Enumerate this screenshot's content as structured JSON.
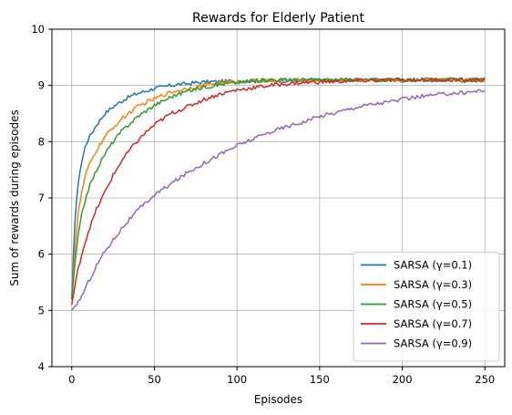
{
  "chart_data": {
    "type": "line",
    "title": "Rewards for Elderly Patient",
    "xlabel": "Episodes",
    "ylabel": "Sum of rewards during episodes",
    "xlim": [
      -12,
      262
    ],
    "ylim": [
      4,
      10
    ],
    "xticks": [
      0,
      50,
      100,
      150,
      200,
      250
    ],
    "yticks": [
      4,
      5,
      6,
      7,
      8,
      9,
      10
    ],
    "grid": true,
    "legend_position": "lower-right",
    "series": [
      {
        "name": "SARSA (γ=0.1)",
        "color": "#1f77b4",
        "x": [
          0,
          1,
          2,
          3,
          5,
          8,
          10,
          15,
          20,
          25,
          30,
          35,
          40,
          45,
          50,
          55,
          60,
          65,
          70,
          75,
          80,
          90,
          100,
          110,
          120,
          130,
          140,
          150,
          160,
          170,
          180,
          190,
          200,
          210,
          220,
          230,
          240,
          250
        ],
        "values": [
          5.2,
          6.0,
          6.6,
          7.0,
          7.5,
          7.9,
          8.05,
          8.3,
          8.5,
          8.62,
          8.72,
          8.8,
          8.86,
          8.9,
          8.95,
          8.97,
          9.0,
          9.02,
          9.03,
          9.05,
          9.06,
          9.07,
          9.08,
          9.08,
          9.09,
          9.09,
          9.09,
          9.09,
          9.09,
          9.1,
          9.09,
          9.1,
          9.09,
          9.1,
          9.09,
          9.1,
          9.08,
          9.1
        ]
      },
      {
        "name": "SARSA (γ=0.3)",
        "color": "#ff7f0e",
        "x": [
          0,
          2,
          4,
          6,
          8,
          10,
          15,
          20,
          25,
          30,
          35,
          40,
          45,
          50,
          55,
          60,
          70,
          80,
          90,
          100,
          110,
          120,
          130,
          140,
          150,
          160,
          170,
          180,
          190,
          200,
          210,
          220,
          230,
          240,
          250
        ],
        "values": [
          5.2,
          6.1,
          6.75,
          7.1,
          7.35,
          7.55,
          7.85,
          8.08,
          8.25,
          8.4,
          8.52,
          8.62,
          8.7,
          8.76,
          8.83,
          8.88,
          8.95,
          9.0,
          9.05,
          9.07,
          9.08,
          9.08,
          9.09,
          9.09,
          9.09,
          9.09,
          9.1,
          9.09,
          9.1,
          9.09,
          9.1,
          9.09,
          9.1,
          9.09,
          9.1
        ]
      },
      {
        "name": "SARSA (γ=0.5)",
        "color": "#2ca02c",
        "x": [
          0,
          2,
          4,
          6,
          8,
          10,
          15,
          20,
          25,
          30,
          35,
          40,
          45,
          50,
          55,
          60,
          70,
          80,
          90,
          100,
          110,
          120,
          130,
          140,
          150,
          160,
          170,
          180,
          190,
          200,
          210,
          220,
          230,
          240,
          250
        ],
        "values": [
          5.2,
          5.85,
          6.35,
          6.7,
          6.95,
          7.15,
          7.5,
          7.78,
          8.0,
          8.18,
          8.32,
          8.45,
          8.55,
          8.65,
          8.72,
          8.8,
          8.9,
          8.97,
          9.02,
          9.05,
          9.08,
          9.1,
          9.1,
          9.1,
          9.1,
          9.1,
          9.1,
          9.1,
          9.1,
          9.1,
          9.1,
          9.1,
          9.1,
          9.1,
          9.1
        ]
      },
      {
        "name": "SARSA (γ=0.7)",
        "color": "#d62728",
        "x": [
          0,
          2,
          4,
          6,
          8,
          10,
          15,
          20,
          25,
          30,
          35,
          40,
          45,
          50,
          55,
          60,
          70,
          80,
          90,
          100,
          110,
          120,
          130,
          140,
          150,
          160,
          170,
          180,
          190,
          200,
          210,
          220,
          230,
          240,
          250
        ],
        "values": [
          5.1,
          5.45,
          5.75,
          6.0,
          6.2,
          6.4,
          6.8,
          7.1,
          7.4,
          7.65,
          7.85,
          8.02,
          8.17,
          8.3,
          8.4,
          8.5,
          8.62,
          8.75,
          8.85,
          8.92,
          8.96,
          9.0,
          9.03,
          9.05,
          9.06,
          9.07,
          9.08,
          9.09,
          9.09,
          9.1,
          9.1,
          9.1,
          9.1,
          9.1,
          9.1
        ]
      },
      {
        "name": "SARSA (γ=0.9)",
        "color": "#9467bd",
        "x": [
          0,
          5,
          10,
          15,
          20,
          25,
          30,
          35,
          40,
          45,
          50,
          55,
          60,
          70,
          80,
          90,
          100,
          110,
          120,
          130,
          140,
          150,
          160,
          170,
          180,
          190,
          200,
          210,
          220,
          230,
          240,
          250
        ],
        "values": [
          5.0,
          5.2,
          5.5,
          5.8,
          6.05,
          6.25,
          6.45,
          6.62,
          6.78,
          6.92,
          7.05,
          7.15,
          7.25,
          7.45,
          7.62,
          7.78,
          7.93,
          8.05,
          8.17,
          8.27,
          8.35,
          8.45,
          8.52,
          8.6,
          8.66,
          8.7,
          8.75,
          8.8,
          8.83,
          8.86,
          8.88,
          8.92
        ]
      }
    ]
  }
}
